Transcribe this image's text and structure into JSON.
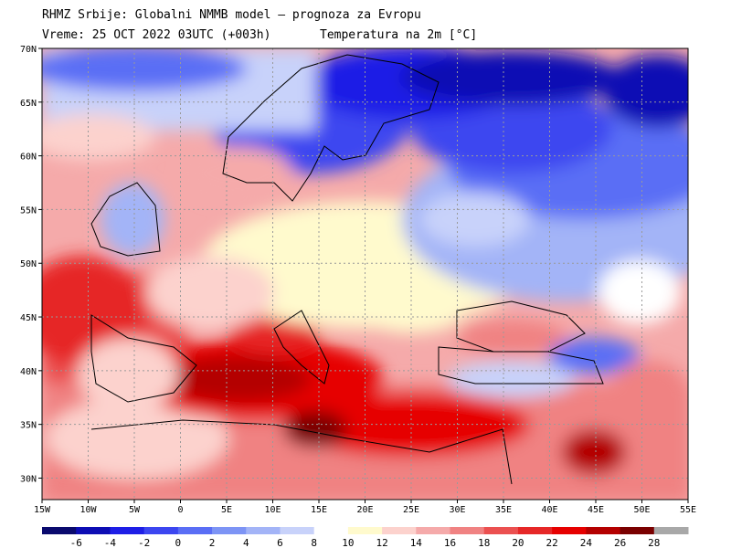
{
  "header": {
    "line1": "RHMZ Srbije: Globalni NMMB model — prognoza za Evropu",
    "line2_left": "Vreme: 25 OCT 2022 03UTC (+003h)",
    "line2_right": "Temperatura na 2m [°C]"
  },
  "map": {
    "lon_range": [
      -15,
      55
    ],
    "lat_range": [
      28,
      70
    ],
    "lat_ticks": [
      {
        "value": 70,
        "label": "70N"
      },
      {
        "value": 65,
        "label": "65N"
      },
      {
        "value": 60,
        "label": "60N"
      },
      {
        "value": 55,
        "label": "55N"
      },
      {
        "value": 50,
        "label": "50N"
      },
      {
        "value": 45,
        "label": "45N"
      },
      {
        "value": 40,
        "label": "40N"
      },
      {
        "value": 35,
        "label": "35N"
      },
      {
        "value": 30,
        "label": "30N"
      }
    ],
    "lon_ticks": [
      {
        "value": -15,
        "label": "15W"
      },
      {
        "value": -10,
        "label": "10W"
      },
      {
        "value": -5,
        "label": "5W"
      },
      {
        "value": 0,
        "label": "0"
      },
      {
        "value": 5,
        "label": "5E"
      },
      {
        "value": 10,
        "label": "10E"
      },
      {
        "value": 15,
        "label": "15E"
      },
      {
        "value": 20,
        "label": "20E"
      },
      {
        "value": 25,
        "label": "25E"
      },
      {
        "value": 30,
        "label": "30E"
      },
      {
        "value": 35,
        "label": "35E"
      },
      {
        "value": 40,
        "label": "40E"
      },
      {
        "value": 45,
        "label": "45E"
      },
      {
        "value": 50,
        "label": "50E"
      },
      {
        "value": 55,
        "label": "55E"
      }
    ],
    "gridline_color": "#9a9a9a"
  },
  "colorbar": {
    "labels": [
      "-6",
      "-4",
      "-2",
      "0",
      "2",
      "4",
      "6",
      "8",
      "10",
      "12",
      "14",
      "16",
      "18",
      "20",
      "22",
      "24",
      "26",
      "28"
    ],
    "colors": [
      "#0a0a6e",
      "#0d0db4",
      "#1e1ee6",
      "#3c46f0",
      "#5a6ef5",
      "#7d94f5",
      "#a3b4f7",
      "#c8d2fa",
      "#ffffff",
      "#fffacd",
      "#fcd2cd",
      "#f5aaaa",
      "#f08282",
      "#eb5050",
      "#e62828",
      "#e60000",
      "#b40000",
      "#7a0000",
      "#a8a8a8"
    ]
  }
}
